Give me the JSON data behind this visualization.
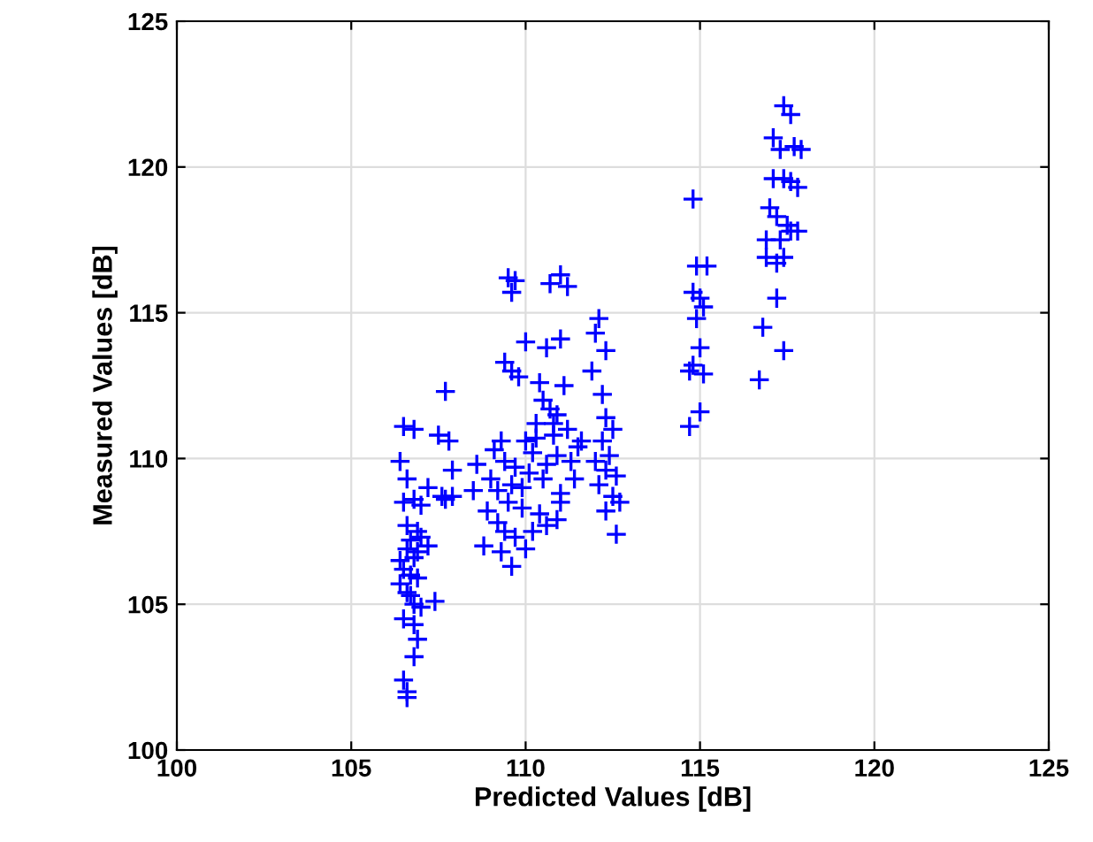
{
  "chart_data": {
    "type": "scatter",
    "xlabel": "Predicted Values [dB]",
    "ylabel": "Measured Values [dB]",
    "xlim": [
      100,
      125
    ],
    "ylim": [
      100,
      125
    ],
    "xticks": [
      100,
      105,
      110,
      115,
      120,
      125
    ],
    "yticks": [
      100,
      105,
      110,
      115,
      120,
      125
    ],
    "grid": true,
    "marker": "cross",
    "series": [
      {
        "color": "#0000ff",
        "x": [
          106.5,
          106.8,
          106.4,
          106.6,
          106.5,
          106.8,
          106.6,
          106.9,
          106.7,
          106.6,
          106.8,
          106.4,
          106.5,
          106.7,
          106.9,
          106.4,
          106.6,
          106.8,
          107.0,
          106.5,
          106.8,
          107.4,
          106.9,
          106.8,
          106.5,
          106.6,
          106.6,
          107.0,
          107.2,
          107.6,
          107.7,
          107.5,
          107.8,
          107.9,
          107.7,
          107.9,
          107.2,
          106.9,
          107.0,
          106.7,
          109.5,
          109.7,
          109.6,
          110.7,
          111.0,
          111.2,
          109.4,
          109.6,
          110.0,
          110.6,
          111.0,
          109.8,
          110.4,
          111.1,
          110.5,
          110.7,
          110.3,
          110.9,
          110.8,
          111.2,
          111.5,
          111.6,
          110.0,
          110.2,
          110.6,
          111.3,
          109.1,
          109.4,
          109.7,
          109.0,
          109.2,
          109.6,
          110.1,
          110.5,
          111.0,
          109.5,
          109.9,
          110.4,
          110.9,
          108.9,
          109.2,
          109.4,
          109.7,
          110.2,
          110.6,
          108.8,
          109.3,
          110.0,
          111.0,
          109.6,
          110.3,
          110.8,
          111.4,
          110.9,
          109.9,
          109.3,
          108.6,
          108.5,
          112.1,
          112.0,
          112.3,
          111.9,
          112.2,
          112.3,
          112.5,
          112.2,
          112.4,
          112.0,
          112.3,
          112.6,
          112.1,
          112.5,
          112.7,
          112.6,
          112.3,
          114.8,
          114.9,
          115.2,
          114.8,
          115.0,
          115.1,
          114.9,
          115.0,
          114.8,
          114.7,
          115.1,
          115.0,
          114.7,
          117.4,
          117.6,
          117.1,
          117.3,
          117.7,
          117.9,
          117.1,
          117.4,
          117.6,
          117.8,
          117.0,
          117.2,
          117.5,
          117.6,
          117.8,
          116.9,
          117.3,
          116.9,
          117.2,
          117.4,
          117.2,
          116.8,
          117.4,
          116.7
        ],
        "values": [
          111.1,
          111.0,
          109.9,
          109.3,
          108.5,
          108.6,
          107.7,
          107.5,
          107.2,
          106.9,
          106.6,
          106.5,
          106.2,
          106.0,
          105.9,
          105.7,
          105.4,
          105.0,
          104.9,
          104.5,
          104.3,
          105.1,
          103.8,
          103.2,
          102.4,
          102.0,
          101.8,
          108.4,
          107.0,
          108.7,
          112.3,
          110.8,
          110.6,
          109.6,
          108.6,
          108.7,
          109.0,
          106.8,
          107.3,
          105.3,
          116.2,
          116.1,
          115.7,
          116.0,
          116.3,
          115.9,
          113.3,
          113.0,
          114.0,
          113.8,
          114.1,
          112.8,
          112.6,
          112.5,
          112.0,
          111.7,
          111.2,
          111.5,
          110.8,
          111.0,
          110.4,
          110.6,
          110.6,
          110.2,
          109.8,
          109.9,
          110.3,
          109.9,
          109.7,
          109.3,
          108.9,
          109.1,
          109.5,
          109.3,
          108.8,
          108.5,
          108.3,
          108.1,
          107.9,
          108.2,
          107.8,
          107.5,
          107.3,
          107.5,
          107.7,
          107.0,
          106.8,
          106.9,
          108.5,
          106.3,
          110.7,
          111.2,
          109.3,
          110.1,
          109.0,
          110.6,
          109.8,
          108.9,
          114.8,
          114.3,
          113.7,
          113.0,
          112.2,
          111.4,
          111.0,
          110.6,
          110.1,
          109.9,
          109.6,
          109.4,
          109.1,
          108.7,
          108.5,
          107.4,
          108.2,
          118.9,
          116.6,
          116.6,
          115.7,
          115.5,
          115.2,
          114.8,
          113.8,
          113.2,
          113.0,
          112.9,
          111.6,
          111.1,
          122.1,
          121.8,
          121.0,
          120.6,
          120.7,
          120.6,
          119.6,
          119.6,
          119.5,
          119.3,
          118.6,
          118.3,
          118.0,
          117.8,
          117.8,
          117.5,
          117.5,
          116.9,
          116.7,
          116.9,
          115.5,
          114.5,
          113.7,
          112.7
        ]
      }
    ]
  }
}
